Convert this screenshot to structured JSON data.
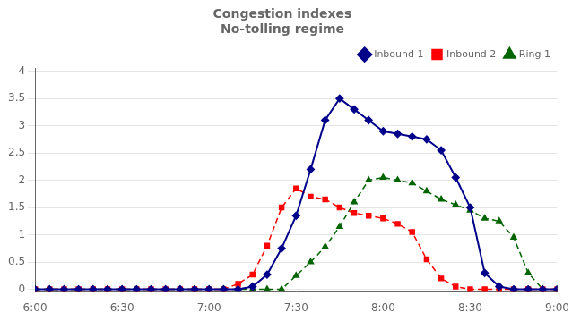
{
  "chart_data": {
    "type": "line",
    "title": "Congestion indexes",
    "subtitle": "No-tolling regime",
    "x": [
      360,
      365,
      370,
      375,
      380,
      385,
      390,
      395,
      400,
      405,
      410,
      415,
      420,
      425,
      430,
      435,
      440,
      445,
      450,
      455,
      460,
      465,
      470,
      475,
      480,
      485,
      490,
      495,
      500,
      505,
      510,
      515,
      520,
      525,
      530,
      535,
      540
    ],
    "series": [
      {
        "name": "Inbound 1",
        "color": "#00008B",
        "marker": "diamond",
        "line_style": "solid",
        "values": [
          0,
          0,
          0,
          0,
          0,
          0,
          0,
          0,
          0,
          0,
          0,
          0,
          0,
          0,
          0,
          0.05,
          0.27,
          0.75,
          1.35,
          2.2,
          3.1,
          3.5,
          3.3,
          3.1,
          2.9,
          2.85,
          2.8,
          2.75,
          2.55,
          2.05,
          1.5,
          0.3,
          0.05,
          0,
          0,
          0,
          0
        ]
      },
      {
        "name": "Inbound 2",
        "color": "#FF0000",
        "marker": "square",
        "line_style": "dashed",
        "values": [
          0,
          0,
          0,
          0,
          0,
          0,
          0,
          0,
          0,
          0,
          0,
          0,
          0,
          0,
          0.1,
          0.27,
          0.8,
          1.5,
          1.85,
          1.7,
          1.65,
          1.5,
          1.4,
          1.35,
          1.3,
          1.2,
          1.05,
          0.55,
          0.2,
          0.05,
          0,
          0,
          0,
          0,
          0,
          0,
          0
        ]
      },
      {
        "name": "Ring 1",
        "color": "#006400",
        "marker": "triangle",
        "line_style": "dashed",
        "values": [
          0,
          0,
          0,
          0,
          0,
          0,
          0,
          0,
          0,
          0,
          0,
          0,
          0,
          0,
          0,
          0,
          0,
          0,
          0.25,
          0.5,
          0.78,
          1.15,
          1.6,
          2.0,
          2.05,
          2.0,
          1.95,
          1.8,
          1.65,
          1.55,
          1.45,
          1.3,
          1.25,
          0.95,
          0.3,
          0,
          0
        ]
      }
    ],
    "xlim": [
      360,
      540
    ],
    "xticks": [
      {
        "value": 360,
        "label": "6:00"
      },
      {
        "value": 390,
        "label": "6:30"
      },
      {
        "value": 420,
        "label": "7:00"
      },
      {
        "value": 450,
        "label": "7:30"
      },
      {
        "value": 480,
        "label": "8:00"
      },
      {
        "value": 510,
        "label": "8:30"
      },
      {
        "value": 540,
        "label": "9:00"
      }
    ],
    "ylim": [
      -0.05,
      4.05
    ],
    "yticks": [
      0,
      0.5,
      1,
      1.5,
      2,
      2.5,
      3,
      3.5,
      4
    ],
    "grid": "y",
    "legend": "upper right"
  }
}
